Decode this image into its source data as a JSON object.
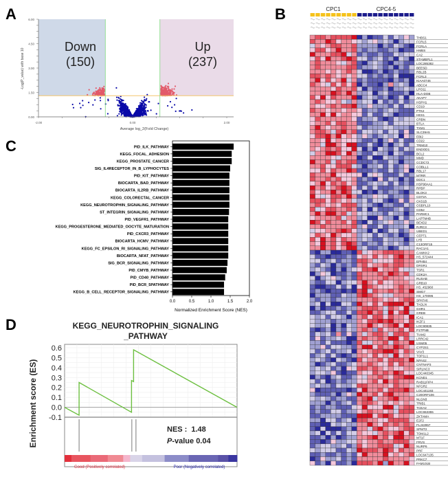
{
  "panels": {
    "A": "A",
    "B": "B",
    "C": "C",
    "D": "D"
  },
  "colors": {
    "down_region": "#cfd9e8",
    "up_region": "#eadbe8",
    "nonsig_point": "#0a0aa8",
    "sig_point": "#e25a6a",
    "threshold_line": "#f3c66b",
    "fc_line": "#7ed87e",
    "cpc1": "#f5c21b",
    "cpc45": "#1c1c8c",
    "heat_high": "#d7101f",
    "heat_low": "#2a2a9a",
    "bar": "#000000",
    "es_curve": "#6cbf3f",
    "good_text": "#e0283a",
    "poor_text": "#1c1ca0"
  },
  "chart_data": [
    {
      "type": "scatter",
      "panel": "A",
      "title": "",
      "xlabel": "Average log_2(Fold Change)",
      "ylabel": "-Log(P_value) with base 10",
      "xlim": [
        -2.0,
        2.0
      ],
      "ylim": [
        0.0,
        6.0
      ],
      "xticks": [
        "-2.00",
        "0.00",
        "2.00"
      ],
      "yticks": [
        "0.00",
        "1.50",
        "3.00",
        "4.50",
        "6.00"
      ],
      "fold_change_cutoffs": [
        -0.58,
        0.58
      ],
      "pvalue_cutoff": 1.3,
      "annotations": [
        {
          "label": "Down",
          "count": "(150)",
          "region": "top-left"
        },
        {
          "label": "Up",
          "count": "(237)",
          "region": "top-right"
        }
      ],
      "down_count": 150,
      "up_count": 237
    },
    {
      "type": "heatmap",
      "panel": "B",
      "groups": [
        {
          "name": "CPC1",
          "n_samples": 9
        },
        {
          "name": "CPC4-5",
          "n_samples": 11
        }
      ],
      "genes": [
        "THBS1",
        "FCRL5",
        "FCRLA",
        "HMBS",
        "CA2",
        "STAMBPL1",
        "LOC285382",
        "BEESD",
        "RBL2B",
        "FCRL3",
        "KIAA0746",
        "ABCC4",
        "LPO11",
        "HLA-DOB",
        "AKAP7",
        "HSPH1",
        "CD19",
        "PTK2",
        "HES1",
        "CRBN",
        "BTLA",
        "TXM1",
        "SLC39A5",
        "EBI2",
        "CD22",
        "TRIM10",
        "ENDOD1",
        "BCL2",
        "MMD",
        "CCDC72",
        "COBLL1",
        "RBL17",
        "MTRR",
        "DDC1",
        "HSP90AA1",
        "RPBP",
        "BLOK3",
        "CD72A",
        "CKS1B",
        "OSBPL10",
        "CD52",
        "PARMC1",
        "LAPTM4B",
        "BEXD2",
        "RJRC3",
        "UBED1",
        "CEPT1",
        "LYB",
        "C13ORF15",
        "RAC1A1",
        "CAMKK2",
        "HS_572444",
        "EPHB4",
        "DRSR1",
        "TSR1",
        "CDK2A",
        "RUSAB",
        "GRB10",
        "HS_452960",
        "SMG7",
        "HS_170095",
        "SPATA6",
        "TAGLN",
        "GHR1",
        "GREB",
        "ICA1",
        "IKZF1",
        "LOC90835",
        "P1TPNB",
        "TIAM2",
        "LRRC42",
        "USM05",
        "CYP2S1",
        "VAV3",
        "TOP1L1",
        "NPAS2",
        "CNTNAP3",
        "SIRLNC3",
        "LOC440345",
        "KCND1",
        "RAB11FIP4",
        "NFGR2",
        "LOC441193",
        "C20ORF106",
        "NLGN3",
        "TRIB1",
        "TCEA2",
        "LOC653355",
        "ZKTAMA",
        "E2F2",
        "FLJ42957",
        "SPMT2",
        "TOM1L2",
        "MT1F",
        "FRVS",
        "NURP6",
        "PRF",
        "LOC647135",
        "PRKC7",
        "FAM101B"
      ],
      "n_up_in_cpc1": 50,
      "color_scale": [
        "blue (low)",
        "white",
        "red (high)"
      ]
    },
    {
      "type": "bar",
      "orientation": "horizontal",
      "panel": "C",
      "title": "",
      "xlabel": "Normalized Enrichment Score (NES)",
      "ylabel": "",
      "xlim": [
        0.0,
        2.0
      ],
      "xticks": [
        "0.0",
        "0.5",
        "1.0",
        "1.5",
        "2.0"
      ],
      "categories": [
        "PID_ILK_PATHWAY",
        "KEGG_FOCAL_ADHESION",
        "KEGG_PROSTATE_CANCER",
        "SIG_IL4RECEPTOR_IN_B_LYPHOCYTES",
        "PID_KIT_PATHWAY",
        "BIOCARTA_BAD_PATHWAY",
        "BIOCARTA_IL2RB_PATHWAY",
        "KEGG_COLORECTAL_CANCER",
        "KEGG_NEUROTROPHIN_SIGNALING_PATHWAY",
        "ST_INTEGRIN_SIGNALING_PATHWAY",
        "PID_VEGFR1_PATHWAY",
        "KEGG_PROGESTERONE_MEDIATED_OOCYTE_MATURATION",
        "PID_CXCR3_PATHWAY",
        "BIOCARTA_HCMV_PATHWAY",
        "KEGG_FC_EPSILON_RI_SIGNALING_PATHWAY",
        "BIOCARTA_NFAT_PATHWAY",
        "SIG_BCR_SIGNALING_PATHWAY",
        "PID_CMYB_PATHWAY",
        "PID_CD40_PATHWAY",
        "PID_BCR_5PATHWAY",
        "KEGG_B_CELL_RECEPTOR_SIGNALING_PATHWAY"
      ],
      "values": [
        1.59,
        1.54,
        1.54,
        1.5,
        1.48,
        1.48,
        1.48,
        1.48,
        1.48,
        1.47,
        1.45,
        1.45,
        1.45,
        1.45,
        1.45,
        1.45,
        1.43,
        1.41,
        1.37,
        1.34,
        1.34
      ]
    },
    {
      "type": "line",
      "panel": "D",
      "title": "KEGG_NEUROTROPHIN_SIGNALING_PATHWAY",
      "title_lines": [
        "KEGG_NEUROTROPHIN_SIGNALING",
        "_PATHWAY"
      ],
      "xlabel": "",
      "ylabel": "Enrichment score (ES)",
      "ylim": [
        -0.1,
        0.6
      ],
      "yticks": [
        "0.6",
        "0.5",
        "0.4",
        "0.3",
        "0.2",
        "0.1",
        "0.0",
        "-0.1"
      ],
      "x_domain": [
        0,
        1
      ],
      "series": [
        {
          "name": "ES",
          "points": [
            [
              0.0,
              0.0
            ],
            [
              0.084,
              -0.08
            ],
            [
              0.084,
              0.25
            ],
            [
              0.388,
              -0.05
            ],
            [
              0.388,
              0.27
            ],
            [
              0.4,
              0.26
            ],
            [
              0.4,
              0.58
            ],
            [
              1.0,
              0.0
            ]
          ]
        }
      ],
      "hits": [
        0.084,
        0.39,
        0.414
      ],
      "nes_label": "NES :",
      "nes_value": "1.48",
      "p_label_italic": "P",
      "p_label_rest": "-value 0.04",
      "nes": 1.48,
      "p_value": 0.04,
      "legend_good": "Good (Positively correlated)",
      "legend_poor": "Poor (Negatively correlated)"
    }
  ]
}
